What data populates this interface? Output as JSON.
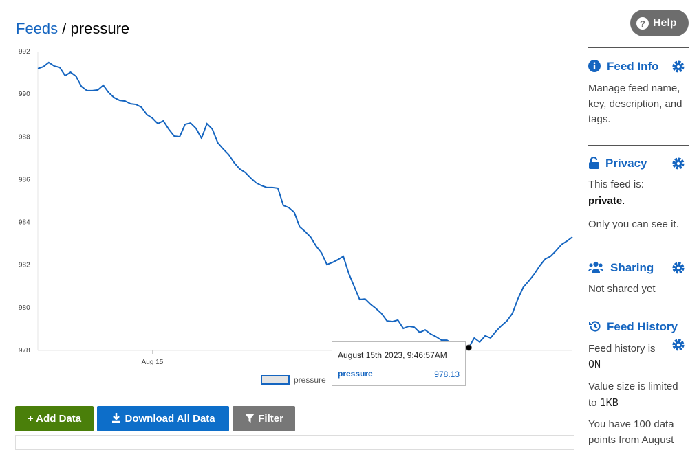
{
  "header": {
    "root": "Feeds",
    "separator": "/",
    "feed": "pressure",
    "help": "Help"
  },
  "chart_data": {
    "type": "line",
    "categories": [
      null,
      null,
      null,
      null,
      null,
      null,
      null,
      null,
      null,
      null,
      null,
      null,
      null,
      null,
      null,
      null,
      null,
      null,
      null,
      null,
      null,
      "Aug 15",
      null,
      null,
      null,
      null,
      null,
      null,
      null,
      null,
      null,
      null,
      null,
      null,
      null,
      null,
      null,
      null,
      null,
      null,
      null,
      null,
      null,
      null,
      null,
      null,
      null,
      null,
      null,
      null,
      null,
      null,
      null,
      null,
      null,
      null,
      null,
      null,
      null,
      null,
      null,
      null,
      null,
      null,
      null,
      null,
      null,
      null,
      null,
      null,
      null,
      null,
      null,
      null,
      null,
      null,
      null,
      null,
      null,
      null,
      null,
      null,
      null,
      null,
      null,
      null,
      null,
      null,
      null,
      null,
      null,
      null,
      null,
      null,
      null,
      null,
      null,
      null,
      null
    ],
    "series": [
      {
        "name": "pressure",
        "color": "#1565c0",
        "values": [
          991.2,
          991.29,
          991.49,
          991.32,
          991.26,
          990.87,
          991.03,
          990.84,
          990.36,
          990.17,
          990.17,
          990.2,
          990.42,
          990.07,
          989.84,
          989.71,
          989.68,
          989.55,
          989.52,
          989.39,
          989.04,
          988.88,
          988.62,
          988.75,
          988.36,
          988.04,
          988.01,
          988.59,
          988.65,
          988.4,
          987.94,
          988.62,
          988.36,
          987.72,
          987.43,
          987.17,
          986.79,
          986.5,
          986.34,
          986.08,
          985.85,
          985.72,
          985.63,
          985.63,
          985.6,
          984.79,
          984.69,
          984.47,
          983.79,
          983.57,
          983.31,
          982.89,
          982.57,
          982.02,
          982.12,
          982.25,
          982.41,
          981.6,
          980.99,
          980.38,
          980.41,
          980.16,
          979.96,
          979.73,
          979.38,
          979.35,
          979.42,
          979.03,
          979.13,
          979.09,
          978.84,
          978.96,
          978.77,
          978.64,
          978.48,
          978.48,
          978.32,
          978.22,
          978.18,
          978.13,
          978.58,
          978.39,
          978.68,
          978.58,
          978.9,
          979.16,
          979.38,
          979.73,
          980.41,
          980.96,
          981.25,
          981.57,
          981.96,
          982.28,
          982.41,
          982.67,
          982.96,
          983.12,
          983.31
        ]
      }
    ],
    "ylim": [
      978,
      992
    ],
    "yticks": [
      978,
      980,
      982,
      984,
      986,
      988,
      990,
      992
    ],
    "grid": false,
    "tooltip": {
      "title": "August 15th 2023, 9:46:57AM",
      "index": 79
    }
  },
  "buttons": {
    "add": "+ Add Data",
    "download": "Download All Data",
    "filter": "Filter"
  },
  "sidebar": {
    "feed_info": {
      "title": "Feed Info",
      "text": "Manage feed name, key, description, and tags."
    },
    "privacy": {
      "title": "Privacy",
      "label": "This feed is:",
      "status": "private",
      "end": ".",
      "note": "Only you can see it."
    },
    "sharing": {
      "title": "Sharing",
      "text": "Not shared yet"
    },
    "history": {
      "title": "Feed History",
      "label": "Feed history is",
      "status": "ON",
      "size_label": "Value size is limited to",
      "size": "1KB",
      "points": "You have 100 data points from August"
    }
  }
}
